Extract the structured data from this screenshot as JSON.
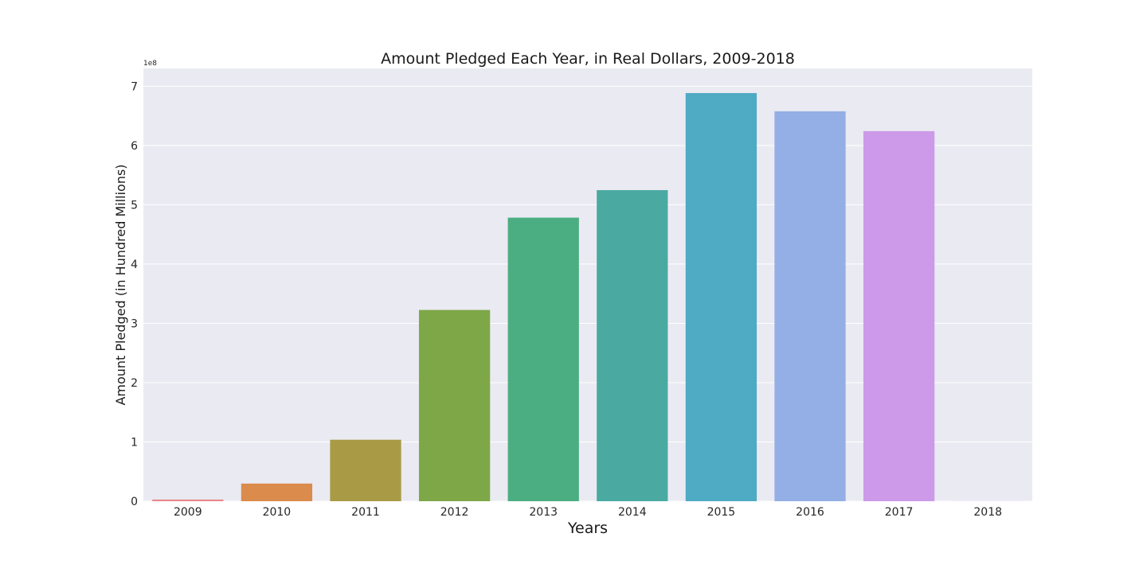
{
  "chart_data": {
    "type": "bar",
    "title": "Amount Pledged Each Year, in Real Dollars, 2009-2018",
    "xlabel": "Years",
    "ylabel": "Amount Pledged (in Hundred Millions)",
    "y_offset_label": "1e8",
    "categories": [
      "2009",
      "2010",
      "2011",
      "2012",
      "2013",
      "2014",
      "2015",
      "2016",
      "2017",
      "2018"
    ],
    "values": [
      2800000,
      29800000,
      103700000,
      322600000,
      478300000,
      524700000,
      688400000,
      657700000,
      624200000,
      100000
    ],
    "colors": [
      "#e8878a",
      "#db8b4c",
      "#a99a46",
      "#7ea748",
      "#4bae82",
      "#4aaaa2",
      "#4faac3",
      "#93afe5",
      "#cc9ae8",
      "#ec84c6"
    ],
    "yticks": [
      0,
      1,
      2,
      3,
      4,
      5,
      6,
      7
    ],
    "ytick_labels": [
      "0",
      "1",
      "2",
      "3",
      "4",
      "5",
      "6",
      "7"
    ],
    "ylim": [
      0,
      730000000
    ],
    "grid": true,
    "legend": "none",
    "background": "#eaeaf2"
  }
}
